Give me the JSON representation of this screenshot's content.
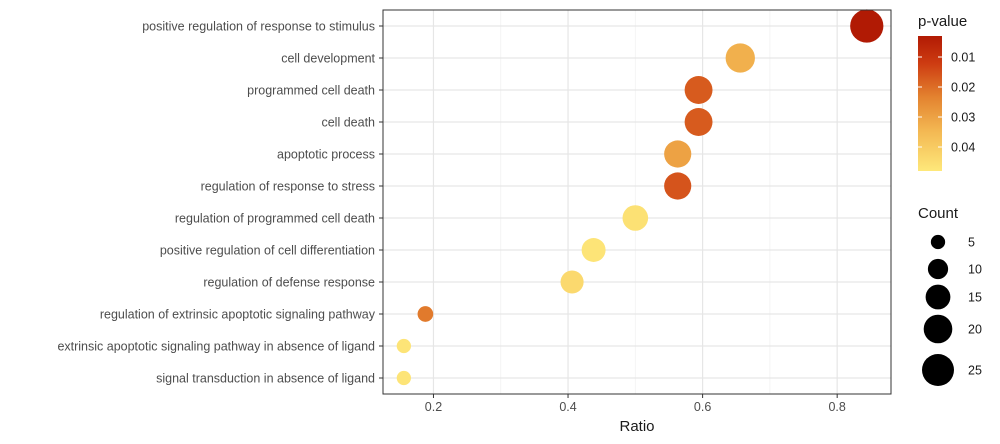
{
  "chart_data": {
    "type": "scatter",
    "xlabel": "Ratio",
    "xlim": [
      0.125,
      0.88
    ],
    "x_ticks": [
      "0.2",
      "0.4",
      "0.6",
      "0.8"
    ],
    "x_tick_values": [
      0.2,
      0.4,
      0.6,
      0.8
    ],
    "grid": true,
    "categories": [
      "positive regulation of response to stimulus",
      "cell development",
      "programmed cell death",
      "cell death",
      "apoptotic process",
      "regulation of response to stress",
      "regulation of programmed cell death",
      "positive regulation of cell differentiation",
      "regulation of defense response",
      "regulation of extrinsic apoptotic signaling pathway",
      "extrinsic apoptotic signaling pathway in absence of ligand",
      "signal transduction in absence of ligand"
    ],
    "points": [
      {
        "term": "positive regulation of response to stimulus",
        "ratio": 0.844,
        "count": 27,
        "pvalue": 0.003
      },
      {
        "term": "cell development",
        "ratio": 0.656,
        "count": 21,
        "pvalue": 0.033
      },
      {
        "term": "programmed cell death",
        "ratio": 0.594,
        "count": 19,
        "pvalue": 0.017
      },
      {
        "term": "cell death",
        "ratio": 0.594,
        "count": 19,
        "pvalue": 0.017
      },
      {
        "term": "apoptotic process",
        "ratio": 0.563,
        "count": 18,
        "pvalue": 0.03
      },
      {
        "term": "regulation of response to stress",
        "ratio": 0.563,
        "count": 18,
        "pvalue": 0.016
      },
      {
        "term": "regulation of programmed cell death",
        "ratio": 0.5,
        "count": 16,
        "pvalue": 0.046
      },
      {
        "term": "positive regulation of cell differentiation",
        "ratio": 0.438,
        "count": 14,
        "pvalue": 0.047
      },
      {
        "term": "regulation of defense response",
        "ratio": 0.406,
        "count": 13,
        "pvalue": 0.044
      },
      {
        "term": "regulation of extrinsic apoptotic signaling pathway",
        "ratio": 0.188,
        "count": 6,
        "pvalue": 0.022
      },
      {
        "term": "extrinsic apoptotic signaling pathway in absence of ligand",
        "ratio": 0.156,
        "count": 5,
        "pvalue": 0.047
      },
      {
        "term": "signal transduction in absence of ligand",
        "ratio": 0.156,
        "count": 5,
        "pvalue": 0.047
      }
    ],
    "color_legend": {
      "title": "p-value",
      "labels": [
        "0.01",
        "0.02",
        "0.03",
        "0.04"
      ],
      "values": [
        0.01,
        0.02,
        0.03,
        0.04
      ],
      "range": [
        0.003,
        0.048
      ],
      "low_color": "#b11a04",
      "high_color": "#fee87a"
    },
    "size_legend": {
      "title": "Count",
      "labels": [
        "5",
        "10",
        "15",
        "20",
        "25"
      ],
      "values": [
        5,
        10,
        15,
        20,
        25
      ]
    }
  }
}
